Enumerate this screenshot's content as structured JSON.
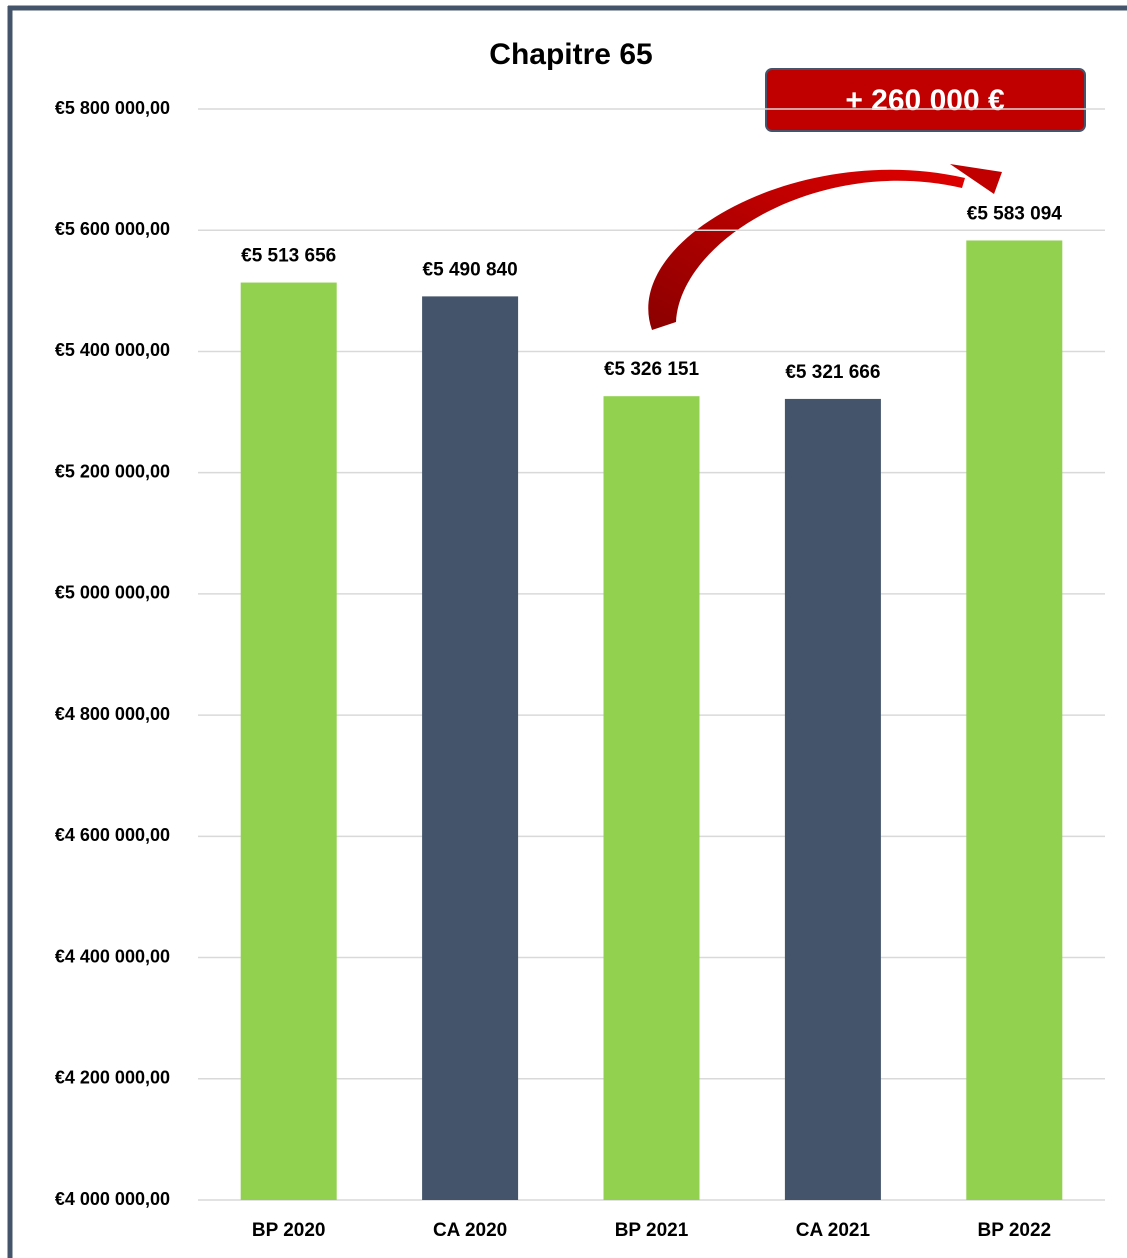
{
  "chart_data": {
    "type": "bar",
    "title": "Chapitre 65",
    "annotation": "+ 260 000 €",
    "categories": [
      "BP 2020",
      "CA 2020",
      "BP 2021",
      "CA 2021",
      "BP 2022"
    ],
    "values": [
      5513656,
      5490840,
      5326151,
      5321666,
      5583094
    ],
    "value_labels": [
      "€5 513 656",
      "€5 490 840",
      "€5 326 151",
      "€5 321 666",
      "€5 583 094"
    ],
    "colors": [
      "#92d050",
      "#44546a",
      "#92d050",
      "#44546a",
      "#92d050"
    ],
    "ylim": [
      4000000,
      5800000
    ],
    "yticks": [
      {
        "value": 4000000,
        "label": "€4 000 000,00"
      },
      {
        "value": 4200000,
        "label": "€4 200 000,00"
      },
      {
        "value": 4400000,
        "label": "€4 400 000,00"
      },
      {
        "value": 4600000,
        "label": "€4 600 000,00"
      },
      {
        "value": 4800000,
        "label": "€4 800 000,00"
      },
      {
        "value": 5000000,
        "label": "€5 000 000,00"
      },
      {
        "value": 5200000,
        "label": "€5 200 000,00"
      },
      {
        "value": 5400000,
        "label": "€5 400 000,00"
      },
      {
        "value": 5600000,
        "label": "€5 600 000,00"
      },
      {
        "value": 5800000,
        "label": "€5 800 000,00"
      }
    ],
    "grid": true
  }
}
